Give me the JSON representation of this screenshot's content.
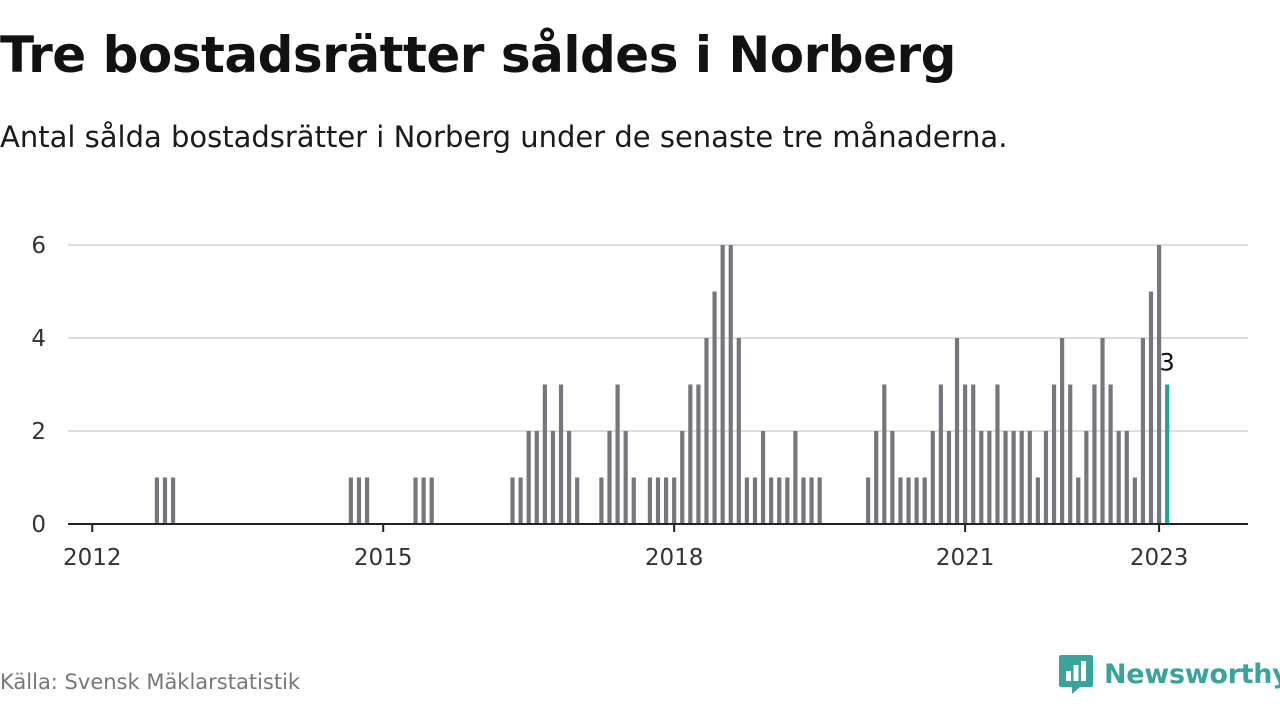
{
  "title": "Tre bostadsrätter såldes i Norberg",
  "subtitle": "Antal sålda bostadsrätter i Norberg under de senaste tre månaderna.",
  "source": "Källa: Svensk Mäklarstatistik",
  "brand": {
    "name": "Newsworthy",
    "color": "#3aa39a",
    "icon": "bar-chart-icon"
  },
  "colors": {
    "bar": "#76767c",
    "highlight": "#1ba39c",
    "grid": "#dddddd",
    "axis": "#222222"
  },
  "chart_data": {
    "type": "bar",
    "x_start": "2011-10",
    "x_end": "2023-12",
    "ylim": [
      0,
      6
    ],
    "yticks": [
      0,
      2,
      4,
      6
    ],
    "xticks": [
      "2012",
      "2015",
      "2018",
      "2021",
      "2023"
    ],
    "grid": true,
    "legend": "none",
    "highlight_label": "3",
    "months": [
      "2012-09",
      "2012-10",
      "2012-11",
      "2014-09",
      "2014-10",
      "2014-11",
      "2015-05",
      "2015-06",
      "2015-07",
      "2016-05",
      "2016-06",
      "2016-07",
      "2016-08",
      "2016-09",
      "2016-10",
      "2016-11",
      "2016-12",
      "2017-01",
      "2017-04",
      "2017-05",
      "2017-06",
      "2017-07",
      "2017-08",
      "2017-10",
      "2017-11",
      "2017-12",
      "2018-01",
      "2018-02",
      "2018-03",
      "2018-04",
      "2018-05",
      "2018-06",
      "2018-07",
      "2018-08",
      "2018-09",
      "2018-10",
      "2018-11",
      "2018-12",
      "2019-01",
      "2019-02",
      "2019-03",
      "2019-04",
      "2019-05",
      "2019-06",
      "2019-07",
      "2020-01",
      "2020-02",
      "2020-03",
      "2020-04",
      "2020-05",
      "2020-06",
      "2020-07",
      "2020-08",
      "2020-09",
      "2020-10",
      "2020-11",
      "2020-12",
      "2021-01",
      "2021-02",
      "2021-03",
      "2021-04",
      "2021-05",
      "2021-06",
      "2021-07",
      "2021-08",
      "2021-09",
      "2021-10",
      "2021-11",
      "2021-12",
      "2022-01",
      "2022-02",
      "2022-03",
      "2022-04",
      "2022-05",
      "2022-06",
      "2022-07",
      "2022-08",
      "2022-09",
      "2022-10",
      "2022-11",
      "2022-12",
      "2023-01",
      "2023-02"
    ],
    "values": [
      1,
      1,
      1,
      1,
      1,
      1,
      1,
      1,
      1,
      1,
      1,
      2,
      2,
      3,
      2,
      3,
      2,
      1,
      1,
      2,
      3,
      2,
      1,
      1,
      1,
      1,
      1,
      2,
      3,
      3,
      4,
      5,
      6,
      6,
      4,
      1,
      1,
      2,
      1,
      1,
      1,
      2,
      1,
      1,
      1,
      1,
      2,
      3,
      2,
      1,
      1,
      1,
      1,
      2,
      3,
      2,
      4,
      3,
      3,
      2,
      2,
      3,
      2,
      2,
      2,
      2,
      1,
      2,
      3,
      4,
      3,
      1,
      2,
      3,
      4,
      3,
      2,
      2,
      1,
      4,
      5,
      6,
      3
    ],
    "highlight_index": 82
  }
}
